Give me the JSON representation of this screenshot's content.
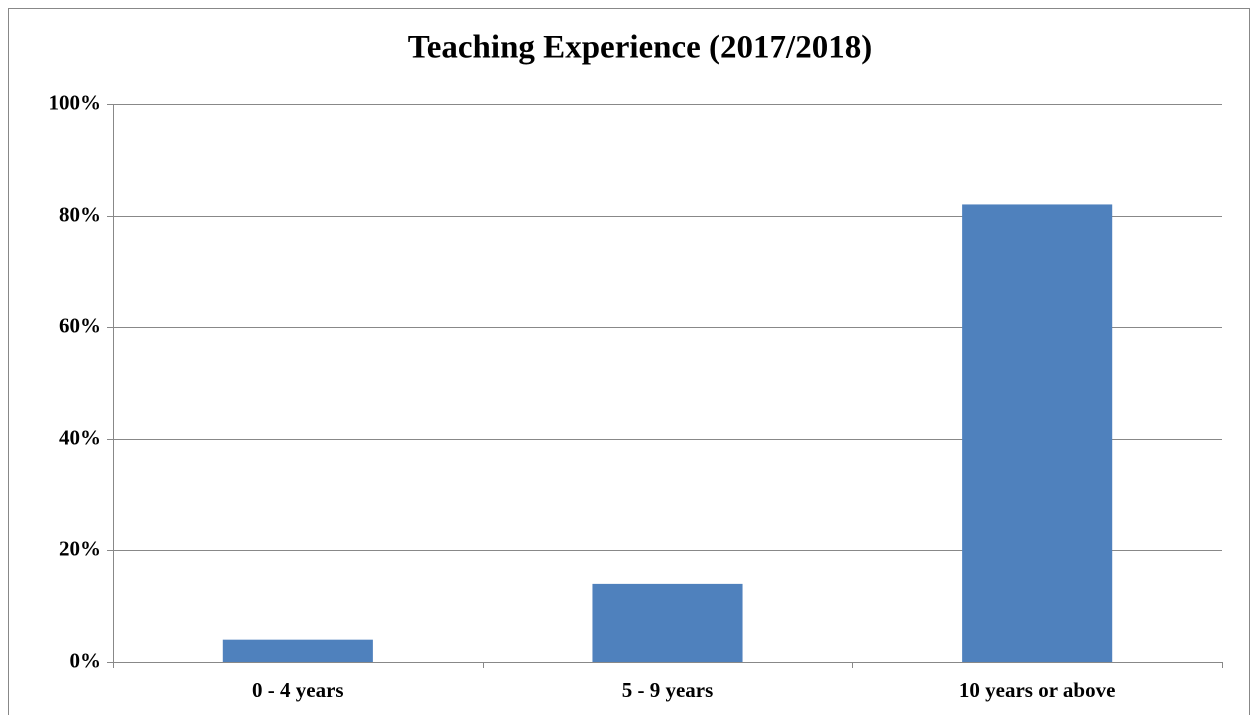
{
  "chart_data": {
    "type": "bar",
    "title": "Teaching Experience (2017/2018)",
    "categories": [
      "0 - 4 years",
      "5 - 9 years",
      "10 years or above"
    ],
    "values": [
      4,
      14,
      82
    ],
    "color": "#4f81bd",
    "ylim": [
      0,
      100
    ],
    "yticks": [
      {
        "value": 0,
        "label": "0%"
      },
      {
        "value": 20,
        "label": "20%"
      },
      {
        "value": 40,
        "label": "40%"
      },
      {
        "value": 60,
        "label": "60%"
      },
      {
        "value": 80,
        "label": "80%"
      },
      {
        "value": 100,
        "label": "100%"
      }
    ],
    "grid": true
  }
}
